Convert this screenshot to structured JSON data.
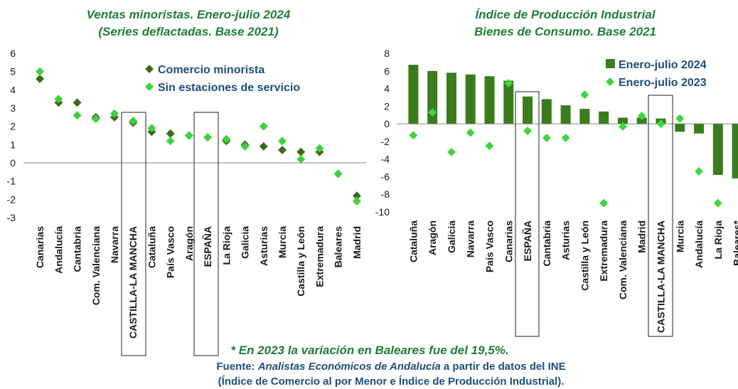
{
  "chart_data": [
    {
      "type": "scatter",
      "title": "Ventas minoristas. Enero-julio 2024",
      "subtitle": "(Series deflactadas. Base 2021)",
      "categories": [
        "Canarias",
        "Andalucía",
        "Cantabria",
        "Com. Valenciana",
        "Navarra",
        "CASTILLA-LA MANCHA",
        "Cataluña",
        "País Vasco",
        "Aragón",
        "ESPAÑA",
        "La Rioja",
        "Galicia",
        "Asturias",
        "Murcia",
        "Castilla y León",
        "Extremadura",
        "Baleares",
        "Madrid"
      ],
      "series": [
        {
          "name": "Comercio minorista",
          "type": "scatter",
          "color": "#3b6b1c",
          "values": [
            4.6,
            3.3,
            3.3,
            2.5,
            2.5,
            2.2,
            1.7,
            1.6,
            1.5,
            1.4,
            1.2,
            1.0,
            0.9,
            0.7,
            0.6,
            0.6,
            -0.6,
            -1.8
          ]
        },
        {
          "name": "Sin estaciones de servicio",
          "type": "scatter",
          "color": "#3fd23f",
          "values": [
            5.0,
            3.5,
            2.6,
            2.4,
            2.7,
            2.3,
            1.9,
            1.2,
            1.5,
            1.4,
            1.3,
            0.9,
            2.0,
            1.2,
            0.2,
            0.8,
            -0.6,
            -2.1
          ]
        }
      ],
      "ylim": [
        -3,
        6
      ],
      "yticks": [
        -3,
        -2,
        -1,
        0,
        1,
        2,
        3,
        4,
        5,
        6
      ],
      "legend": "upper right"
    },
    {
      "type": "bar",
      "title": "Índice de Producción Industrial",
      "subtitle": "Bienes de Consumo. Base 2021",
      "categories": [
        "Cataluña",
        "Aragón",
        "Galicia",
        "Navarra",
        "País Vasco",
        "Canarias",
        "ESPAÑA",
        "Cantabria",
        "Asturias",
        "Castilla y León",
        "Extremadura",
        "Com. Valenciana",
        "Madrid",
        "CASTILLA-LA MANCHA",
        "Murcia",
        "Andalucía",
        "La Rioja",
        "Baleares*"
      ],
      "series": [
        {
          "name": "Enero-julio 2024",
          "type": "bar",
          "color": "#3a7d1e",
          "values": [
            6.7,
            6.0,
            5.8,
            5.6,
            5.4,
            4.9,
            3.1,
            2.8,
            2.1,
            1.7,
            1.4,
            0.7,
            0.7,
            0.6,
            -0.9,
            -1.1,
            -5.8,
            -6.2
          ]
        },
        {
          "name": "Enero-julio 2023",
          "type": "scatter",
          "color": "#3ed63e",
          "values": [
            -1.3,
            1.3,
            -3.2,
            -1.0,
            -2.5,
            4.6,
            -0.8,
            -1.6,
            -1.6,
            3.3,
            -9.0,
            -0.3,
            0.9,
            0.0,
            0.6,
            -5.4,
            -9.0,
            null
          ]
        }
      ],
      "ylim": [
        -10,
        8
      ],
      "yticks": [
        -10,
        -8,
        -6,
        -4,
        -2,
        0,
        2,
        4,
        6,
        8
      ],
      "legend": "upper right"
    }
  ],
  "notes": {
    "asterisk": "* En 2023 la variación en Baleares fue del 19,5%.",
    "source_label": "Fuente:",
    "source_author": "Analistas Económicos de Andalucía",
    "source_rest": "a partir de datos del INE",
    "source_line2": "(Índice de Comercio al por Menor e Índice de Producción Industrial)."
  }
}
